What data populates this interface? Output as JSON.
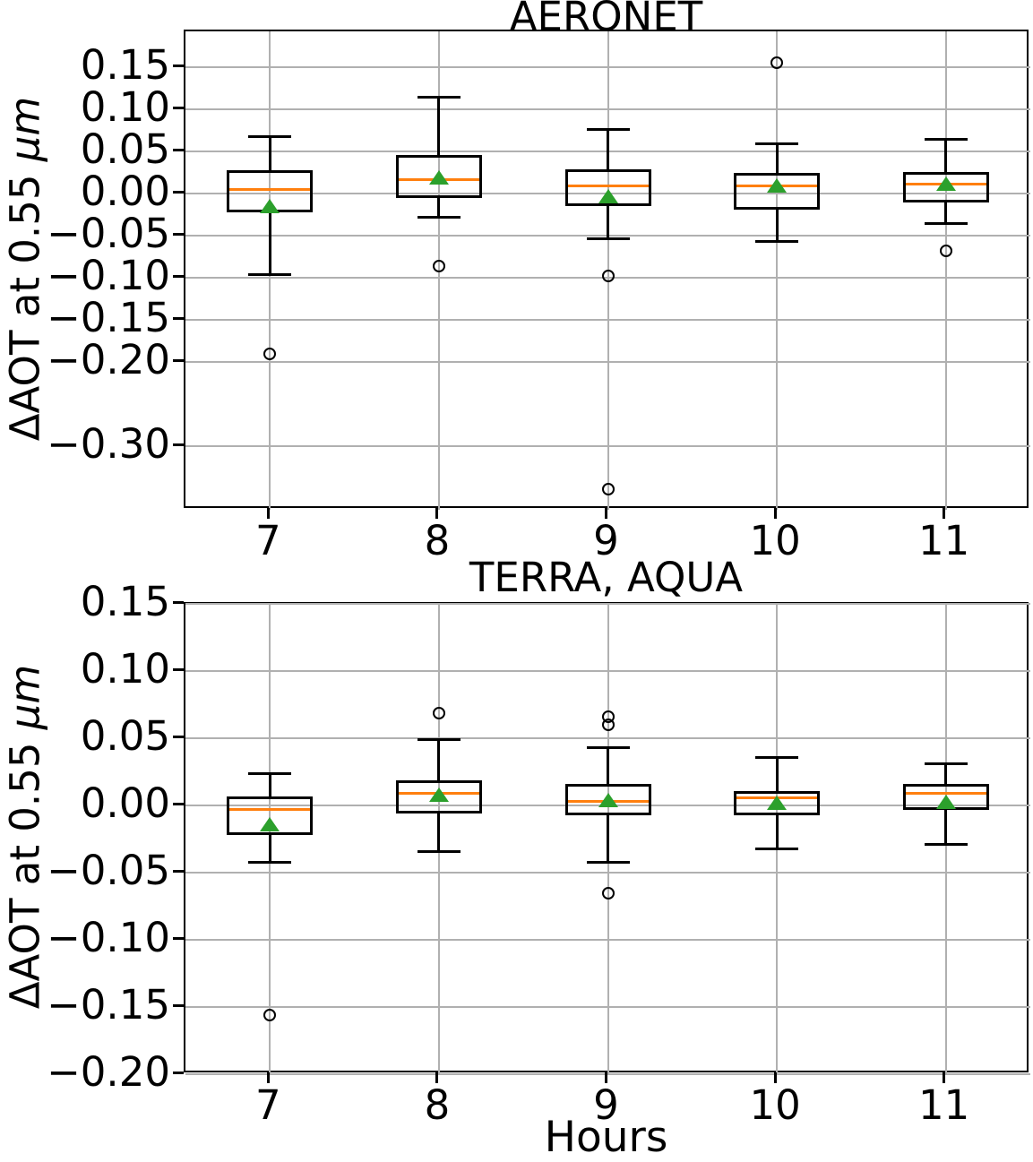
{
  "figure": {
    "background": "#ffffff"
  },
  "colors": {
    "median": "#ff7f0e",
    "mean": "#2ca02c",
    "grid": "#b0b0b0",
    "box": "#000000"
  },
  "chart_data": [
    {
      "type": "box",
      "title": "AERONET",
      "ylabel": "ΔAOT at 0.55 μm",
      "ylabel_prefix": "ΔAOT at 0.55 ",
      "ylabel_unit": "μm",
      "xlabel": "",
      "grid": true,
      "legend": "none",
      "categories": [
        "7",
        "8",
        "9",
        "10",
        "11"
      ],
      "ylim": [
        -0.375,
        0.193
      ],
      "yticks": [
        0.15,
        0.1,
        0.05,
        0.0,
        -0.05,
        -0.1,
        -0.15,
        -0.2,
        -0.3
      ],
      "ytick_labels": [
        "0.15",
        "0.10",
        "0.05",
        "0.00",
        "−0.05",
        "−0.10",
        "−0.15",
        "−0.20",
        "−0.30"
      ],
      "mean_marker": "triangle-up",
      "outlier_marker": "circle",
      "series": [
        {
          "name": "7",
          "whisker_low": -0.096,
          "q1": -0.022,
          "median": 0.005,
          "mean": -0.014,
          "q3": 0.028,
          "whisker_high": 0.068,
          "outliers": [
            -0.19
          ]
        },
        {
          "name": "8",
          "whisker_low": -0.028,
          "q1": -0.005,
          "median": 0.017,
          "mean": 0.02,
          "q3": 0.046,
          "whisker_high": 0.115,
          "outliers": [
            -0.086
          ]
        },
        {
          "name": "9",
          "whisker_low": -0.053,
          "q1": -0.014,
          "median": 0.009,
          "mean": -0.003,
          "q3": 0.029,
          "whisker_high": 0.076,
          "outliers": [
            -0.097,
            -0.351
          ]
        },
        {
          "name": "10",
          "whisker_low": -0.056,
          "q1": -0.019,
          "median": 0.01,
          "mean": 0.01,
          "q3": 0.025,
          "whisker_high": 0.059,
          "outliers": [
            0.156
          ]
        },
        {
          "name": "11",
          "whisker_low": -0.035,
          "q1": -0.01,
          "median": 0.012,
          "mean": 0.012,
          "q3": 0.026,
          "whisker_high": 0.065,
          "outliers": [
            -0.068
          ]
        }
      ]
    },
    {
      "type": "box",
      "title": "TERRA, AQUA",
      "ylabel": "ΔAOT at 0.55 μm",
      "ylabel_prefix": "ΔAOT at 0.55 ",
      "ylabel_unit": "μm",
      "xlabel": "Hours",
      "grid": true,
      "legend": "none",
      "categories": [
        "7",
        "8",
        "9",
        "10",
        "11"
      ],
      "ylim": [
        -0.2,
        0.15
      ],
      "yticks": [
        0.15,
        0.1,
        0.05,
        0.0,
        -0.05,
        -0.1,
        -0.15,
        -0.2
      ],
      "ytick_labels": [
        "0.15",
        "0.10",
        "0.05",
        "0.00",
        "−0.05",
        "−0.10",
        "−0.15",
        "−0.20"
      ],
      "mean_marker": "triangle-up",
      "outlier_marker": "circle",
      "series": [
        {
          "name": "7",
          "whisker_low": -0.042,
          "q1": -0.022,
          "median": -0.003,
          "mean": -0.014,
          "q3": 0.007,
          "whisker_high": 0.024,
          "outliers": [
            -0.156
          ]
        },
        {
          "name": "8",
          "whisker_low": -0.034,
          "q1": -0.006,
          "median": 0.009,
          "mean": 0.008,
          "q3": 0.019,
          "whisker_high": 0.049,
          "outliers": [
            0.069
          ]
        },
        {
          "name": "9",
          "whisker_low": -0.042,
          "q1": -0.007,
          "median": 0.003,
          "mean": 0.004,
          "q3": 0.016,
          "whisker_high": 0.043,
          "outliers": [
            0.066,
            0.06,
            -0.065
          ]
        },
        {
          "name": "10",
          "whisker_low": -0.032,
          "q1": -0.007,
          "median": 0.006,
          "mean": 0.002,
          "q3": 0.011,
          "whisker_high": 0.036,
          "outliers": []
        },
        {
          "name": "11",
          "whisker_low": -0.029,
          "q1": -0.003,
          "median": 0.009,
          "mean": 0.003,
          "q3": 0.016,
          "whisker_high": 0.031,
          "outliers": []
        }
      ]
    }
  ]
}
